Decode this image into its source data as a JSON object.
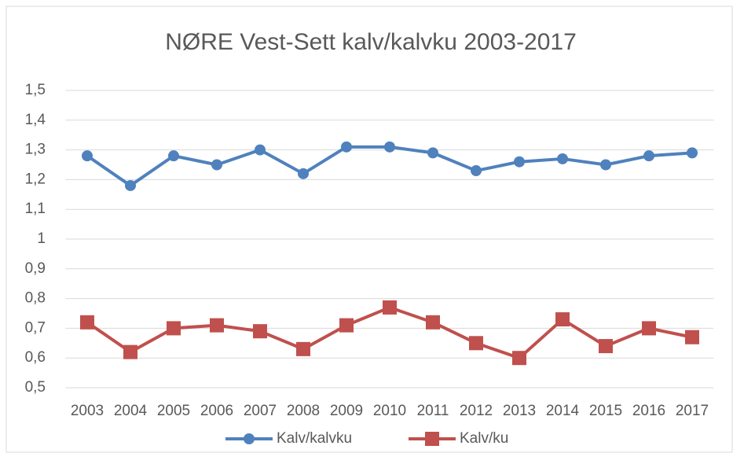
{
  "chart_data": {
    "type": "line",
    "title": "NØRE Vest-Sett kalv/kalvku 2003-2017",
    "categories": [
      "2003",
      "2004",
      "2005",
      "2006",
      "2007",
      "2008",
      "2009",
      "2010",
      "2011",
      "2012",
      "2013",
      "2014",
      "2015",
      "2016",
      "2017"
    ],
    "series": [
      {
        "name": "Kalv/kalvku",
        "color": "#4f81bd",
        "marker": "circle",
        "values": [
          1.28,
          1.18,
          1.28,
          1.25,
          1.3,
          1.22,
          1.31,
          1.31,
          1.29,
          1.23,
          1.26,
          1.27,
          1.25,
          1.28,
          1.29
        ]
      },
      {
        "name": "Kalv/ku",
        "color": "#c0504d",
        "marker": "square",
        "values": [
          0.72,
          0.62,
          0.7,
          0.71,
          0.69,
          0.63,
          0.71,
          0.77,
          0.72,
          0.65,
          0.6,
          0.73,
          0.64,
          0.7,
          0.67
        ]
      }
    ],
    "ylim": [
      0.5,
      1.5
    ],
    "yticks": [
      {
        "value": 0.5,
        "label": "0,5"
      },
      {
        "value": 0.6,
        "label": "0,6"
      },
      {
        "value": 0.7,
        "label": "0,7"
      },
      {
        "value": 0.8,
        "label": "0,8"
      },
      {
        "value": 0.9,
        "label": "0,9"
      },
      1,
      {
        "value": 1.1,
        "label": "1,1"
      },
      {
        "value": 1.2,
        "label": "1,2"
      },
      {
        "value": 1.3,
        "label": "1,3"
      },
      {
        "value": 1.4,
        "label": "1,4"
      },
      {
        "value": 1.5,
        "label": "1,5"
      }
    ],
    "grid": true,
    "legend": "bottom"
  }
}
